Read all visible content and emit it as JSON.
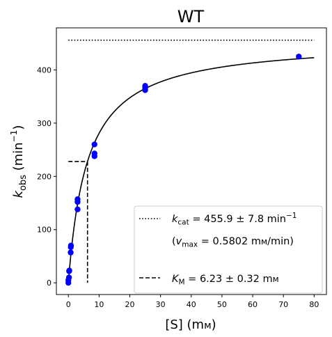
{
  "chart_data": {
    "type": "scatter",
    "title": "WT",
    "xlabel": {
      "main": "[S] (m",
      "unit": "м",
      "close": ")"
    },
    "ylabel": {
      "k": "k",
      "sub": "obs",
      "main": " (min",
      "sup": "−1",
      "close": ")"
    },
    "xlim": [
      -3.9,
      84
    ],
    "ylim": [
      -22,
      479
    ],
    "xticks": [
      0,
      10,
      20,
      30,
      40,
      50,
      60,
      70,
      80
    ],
    "yticks": [
      0,
      100,
      200,
      300,
      400
    ],
    "points": {
      "color": "#0000ff",
      "x": [
        0.0,
        0.0,
        0.2,
        0.25,
        0.3,
        0.75,
        0.8,
        0.85,
        3.0,
        3.0,
        3.0,
        8.5,
        8.5,
        8.5,
        25.0,
        25.0,
        25.0,
        75.0
      ],
      "y": [
        0,
        5,
        10,
        22,
        23,
        57,
        67,
        70,
        138,
        152,
        157,
        238,
        243,
        260,
        362,
        366,
        370,
        425
      ]
    },
    "fit": {
      "vmax": 455.9,
      "km": 6.23,
      "x_from": 0,
      "x_to": 80,
      "color": "#000000"
    },
    "kcat_line": {
      "y": 455.9,
      "x_from": 0,
      "x_to": 80
    },
    "km_line": {
      "x": 6.23,
      "y": 227.95,
      "x_from": 0
    },
    "legend": {
      "position": "lower-right",
      "kcat": {
        "k": "k",
        "sub": "cat",
        "text": " = 455.9 ± 7.8 min",
        "sup": "−1"
      },
      "vmax": {
        "open": "(",
        "v": "v",
        "sub": "max",
        "text": " = 0.5802 m",
        "unit": "м",
        "tail": "/min)"
      },
      "km": {
        "k": "K",
        "sub": "M",
        "text": " = 6.23 ± 0.32 m",
        "unit": "м"
      }
    }
  }
}
